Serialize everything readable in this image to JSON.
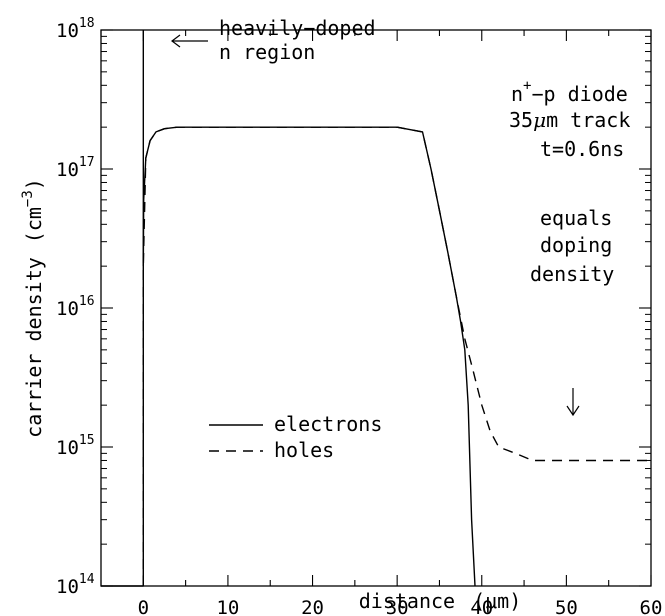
{
  "chart_data": {
    "type": "line",
    "title": "",
    "xlabel": "distance",
    "xlabel_unit": "(μm)",
    "ylabel": "carrier density",
    "ylabel_unit": "(cm",
    "ylabel_unit_exp": "−3",
    "ylabel_unit_close": ")",
    "xlim": [
      -5,
      60
    ],
    "ylim": [
      100000000000000.0,
      1e+18
    ],
    "yscale": "log",
    "x_ticks": [
      0,
      10,
      20,
      30,
      40,
      50,
      60
    ],
    "x_tick_labels": [
      "0",
      "10",
      "20",
      "30",
      "40",
      "50",
      "60"
    ],
    "y_ticks": [
      {
        "value": 100000000000000.0,
        "base": "10",
        "exp": "14"
      },
      {
        "value": 1000000000000000.0,
        "base": "10",
        "exp": "15"
      },
      {
        "value": 1e+16,
        "base": "10",
        "exp": "16"
      },
      {
        "value": 1e+17,
        "base": "10",
        "exp": "17"
      },
      {
        "value": 1e+18,
        "base": "10",
        "exp": "18"
      }
    ],
    "grid": false,
    "legend_position": "lower-left",
    "series": [
      {
        "name": "electrons",
        "style": "solid",
        "x": [
          -5,
          0,
          0,
          0.05,
          0.3,
          0.8,
          1.5,
          2.5,
          4,
          10,
          20,
          30,
          33,
          34,
          35,
          36,
          37,
          37.5,
          38,
          38.4,
          38.8,
          39.2
        ],
        "y": [
          100000000000000.0,
          100000000000000.0,
          2e+16,
          6e+16,
          1.2e+17,
          1.6e+17,
          1.85e+17,
          1.95e+17,
          2e+17,
          2e+17,
          2e+17,
          2e+17,
          1.85e+17,
          1e+17,
          5e+16,
          2.5e+16,
          1.2e+16,
          8000000000000000.0,
          5000000000000000.0,
          2000000000000000.0,
          300000000000000.0,
          100000000000000.0
        ]
      },
      {
        "name": "holes",
        "style": "dashed",
        "x": [
          0,
          0,
          0.3,
          0.8,
          1.5,
          2.5,
          4,
          10,
          20,
          30,
          33,
          34,
          35,
          36,
          37,
          38,
          39,
          40,
          41,
          42,
          44,
          46,
          50,
          55,
          60
        ],
        "y": [
          100000000000000.0,
          2e+16,
          1.2e+17,
          1.6e+17,
          1.85e+17,
          1.95e+17,
          2e+17,
          2e+17,
          2e+17,
          2e+17,
          1.85e+17,
          1e+17,
          5e+16,
          2.5e+16,
          1.2e+16,
          6000000000000000.0,
          3500000000000000.0,
          2000000000000000.0,
          1300000000000000.0,
          1000000000000000.0,
          900000000000000.0,
          800000000000000.0,
          800000000000000.0,
          800000000000000.0,
          800000000000000.0
        ]
      }
    ],
    "annotations": {
      "n_region_line1": "heavily−doped",
      "n_region_line2": "n region",
      "diode_prefix": "n",
      "diode_sup": "+",
      "diode_rest": "−p diode",
      "track_num": "35",
      "track_mu": "μ",
      "track_rest": "m track",
      "time": "t=0.6ns",
      "equals_line1": "equals",
      "equals_line2": "doping",
      "equals_line3": "density"
    },
    "legend": {
      "electrons": "electrons",
      "holes": "holes"
    }
  }
}
